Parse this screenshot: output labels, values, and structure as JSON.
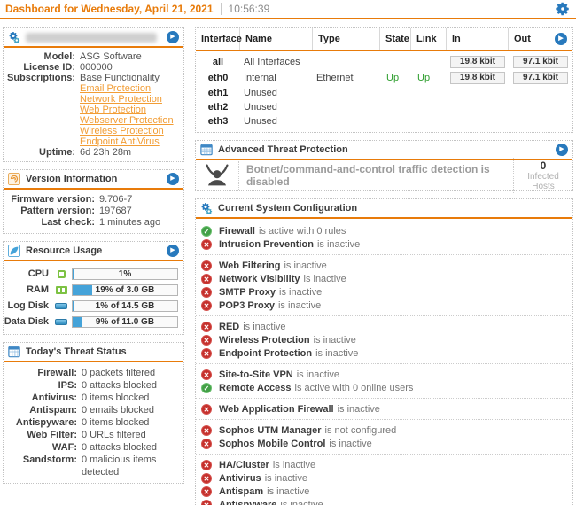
{
  "colors": {
    "accent_orange": "#e87b0a",
    "link_orange": "#f29d35",
    "button_blue": "#2779bd",
    "ok_green": "#43a047",
    "error_red": "#c5302c",
    "up_green": "#2e9e2e",
    "bar_blue": "#45a3d9"
  },
  "header": {
    "title": "Dashboard for Wednesday, April 21, 2021",
    "time": "10:56:39"
  },
  "system_panel": {
    "icon": "gears-icon",
    "title_redacted": true,
    "rows": [
      {
        "label": "Model:",
        "value": "ASG Software"
      },
      {
        "label": "License ID:",
        "value": "000000"
      },
      {
        "label": "Subscriptions:",
        "value": "Base Functionality"
      }
    ],
    "subscription_links": [
      "Email Protection",
      "Network Protection",
      "Web Protection",
      "Webserver Protection",
      "Wireless Protection",
      "Endpoint AntiVirus"
    ],
    "uptime": {
      "label": "Uptime:",
      "value": "6d 23h 28m"
    }
  },
  "version_panel": {
    "icon": "update-swirl-icon",
    "title": "Version Information",
    "rows": [
      {
        "label": "Firmware version:",
        "value": "9.706-7"
      },
      {
        "label": "Pattern version:",
        "value": "197687"
      },
      {
        "label": "Last check:",
        "value": "1 minutes ago"
      }
    ]
  },
  "resource_panel": {
    "icon": "leaf-icon",
    "title": "Resource Usage",
    "rows": [
      {
        "label": "CPU",
        "icon": "cpu-icon",
        "percent": 1,
        "text": "1%"
      },
      {
        "label": "RAM",
        "icon": "ram-icon",
        "percent": 19,
        "text": "19% of 3.0 GB"
      },
      {
        "label": "Log Disk",
        "icon": "disk-icon",
        "percent": 1,
        "text": "1% of 14.5 GB"
      },
      {
        "label": "Data Disk",
        "icon": "disk-icon",
        "percent": 9,
        "text": "9% of 11.0 GB"
      }
    ]
  },
  "threat_panel": {
    "icon": "calendar-icon",
    "title": "Today's Threat Status",
    "rows": [
      {
        "label": "Firewall:",
        "value": "0 packets filtered"
      },
      {
        "label": "IPS:",
        "value": "0 attacks blocked"
      },
      {
        "label": "Antivirus:",
        "value": "0 items blocked"
      },
      {
        "label": "Antispam:",
        "value": "0 emails blocked"
      },
      {
        "label": "Antispyware:",
        "value": "0 items blocked"
      },
      {
        "label": "Web Filter:",
        "value": "0 URLs filtered"
      },
      {
        "label": "WAF:",
        "value": "0 attacks blocked"
      },
      {
        "label": "Sandstorm:",
        "value": "0 malicious items detected"
      }
    ]
  },
  "interfaces_panel": {
    "columns": [
      "Interface",
      "Name",
      "Type",
      "State",
      "Link",
      "In",
      "Out"
    ],
    "rows": [
      {
        "interface": "all",
        "name": "All Interfaces",
        "type": "",
        "state": "",
        "link": "",
        "in": "19.8 kbit",
        "out": "97.1 kbit"
      },
      {
        "interface": "eth0",
        "name": "Internal",
        "type": "Ethernet",
        "state": "Up",
        "link": "Up",
        "in": "19.8 kbit",
        "out": "97.1 kbit"
      },
      {
        "interface": "eth1",
        "name": "Unused",
        "type": "",
        "state": "",
        "link": "",
        "in": "",
        "out": ""
      },
      {
        "interface": "eth2",
        "name": "Unused",
        "type": "",
        "state": "",
        "link": "",
        "in": "",
        "out": ""
      },
      {
        "interface": "eth3",
        "name": "Unused",
        "type": "",
        "state": "",
        "link": "",
        "in": "",
        "out": ""
      }
    ]
  },
  "atp_panel": {
    "icon": "calendar-icon",
    "title": "Advanced Threat Protection",
    "bot_icon": "botnet-icon",
    "message": "Botnet/command-and-control traffic detection is disabled",
    "count": "0",
    "count_label": "Infected Hosts"
  },
  "config_panel": {
    "icon": "gears-icon",
    "title": "Current System Configuration",
    "groups": [
      [
        {
          "name": "Firewall",
          "status": "is active with 0 rules",
          "state": "active"
        },
        {
          "name": "Intrusion Prevention",
          "status": "is inactive",
          "state": "inactive"
        }
      ],
      [
        {
          "name": "Web Filtering",
          "status": "is inactive",
          "state": "inactive"
        },
        {
          "name": "Network Visibility",
          "status": "is inactive",
          "state": "inactive"
        },
        {
          "name": "SMTP Proxy",
          "status": "is inactive",
          "state": "inactive"
        },
        {
          "name": "POP3 Proxy",
          "status": "is inactive",
          "state": "inactive"
        }
      ],
      [
        {
          "name": "RED",
          "status": "is inactive",
          "state": "inactive"
        },
        {
          "name": "Wireless Protection",
          "status": "is inactive",
          "state": "inactive"
        },
        {
          "name": "Endpoint Protection",
          "status": "is inactive",
          "state": "inactive"
        }
      ],
      [
        {
          "name": "Site-to-Site VPN",
          "status": "is inactive",
          "state": "inactive"
        },
        {
          "name": "Remote Access",
          "status": "is active with 0 online users",
          "state": "active"
        }
      ],
      [
        {
          "name": "Web Application Firewall",
          "status": "is inactive",
          "state": "inactive"
        }
      ],
      [
        {
          "name": "Sophos UTM Manager",
          "status": "is not configured",
          "state": "inactive"
        },
        {
          "name": "Sophos Mobile Control",
          "status": "is inactive",
          "state": "inactive"
        }
      ],
      [
        {
          "name": "HA/Cluster",
          "status": "is inactive",
          "state": "inactive"
        },
        {
          "name": "Antivirus",
          "status": "is inactive",
          "state": "inactive"
        },
        {
          "name": "Antispam",
          "status": "is inactive",
          "state": "inactive"
        },
        {
          "name": "Antispyware",
          "status": "is inactive",
          "state": "inactive"
        }
      ]
    ]
  }
}
